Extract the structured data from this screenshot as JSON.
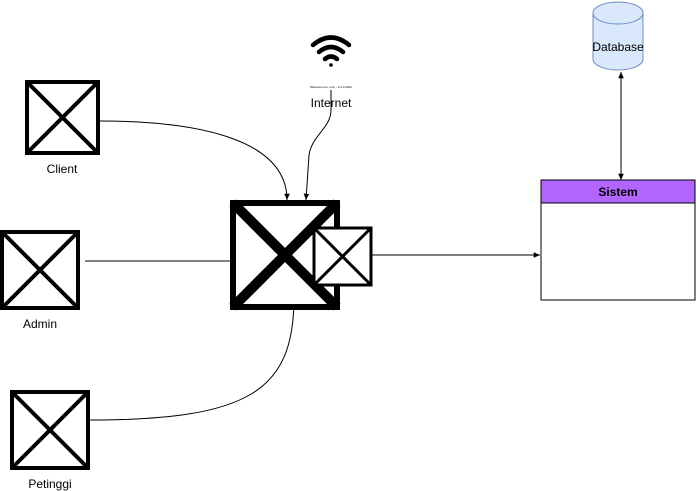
{
  "nodes": {
    "client": {
      "label": "Client"
    },
    "admin": {
      "label": "Admin"
    },
    "petinggi": {
      "label": "Petinggi"
    },
    "internet": {
      "label": "Internet",
      "caption": "Wireless icon, icon - 1.0.0.2021"
    },
    "database": {
      "label": "Database"
    },
    "sistem": {
      "title": "Sistem",
      "header_color": "#b266ff"
    }
  },
  "colors": {
    "stroke": "#000000",
    "background": "#ffffff",
    "database_fill": "#dae8fc",
    "database_stroke": "#6c8ebf"
  }
}
